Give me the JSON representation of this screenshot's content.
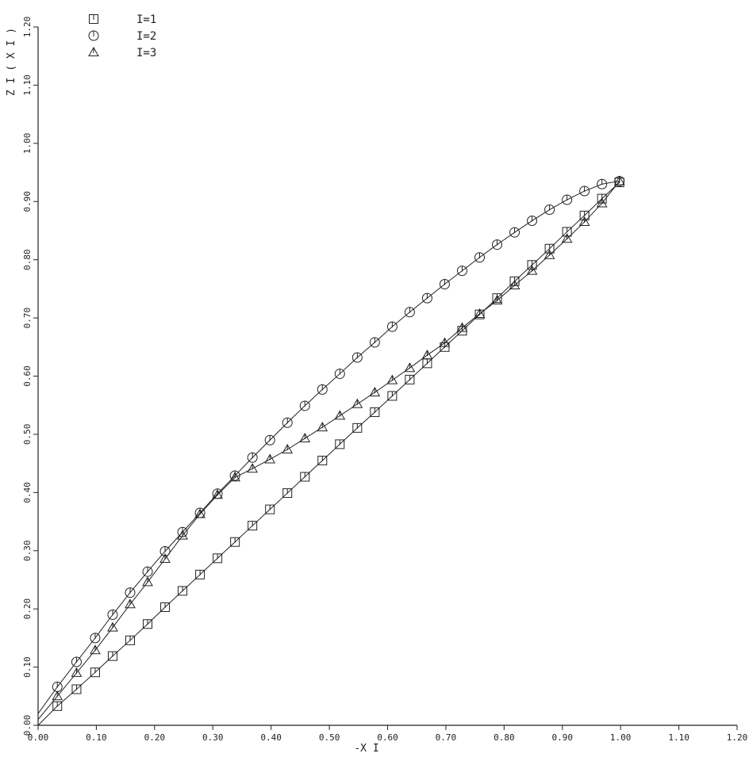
{
  "chart_data": {
    "type": "line",
    "xlabel": "-X I",
    "ylabel": "Z I ( X I )",
    "xlim": [
      0.0,
      1.2
    ],
    "ylim": [
      0.0,
      1.2
    ],
    "xticks": [
      "0.00",
      "0.10",
      "0.20",
      "0.30",
      "0.40",
      "0.50",
      "0.60",
      "0.70",
      "0.80",
      "0.90",
      "1.00",
      "1.10",
      "1.20"
    ],
    "yticks": [
      "0.00",
      "0.10",
      "0.20",
      "0.30",
      "0.40",
      "0.50",
      "0.60",
      "0.70",
      "0.80",
      "0.90",
      "1.00",
      "1.10",
      "1.20"
    ],
    "grid": false,
    "legend_position": "top-left",
    "series": [
      {
        "name": "I=1",
        "marker": "square",
        "x": [
          0.033,
          0.066,
          0.098,
          0.128,
          0.158,
          0.188,
          0.218,
          0.248,
          0.278,
          0.308,
          0.338,
          0.368,
          0.398,
          0.428,
          0.458,
          0.488,
          0.518,
          0.548,
          0.578,
          0.608,
          0.638,
          0.668,
          0.698,
          0.728,
          0.758,
          0.788,
          0.818,
          0.848,
          0.878,
          0.908,
          0.938,
          0.968,
          0.998
        ],
        "y": [
          0.033,
          0.062,
          0.091,
          0.119,
          0.146,
          0.174,
          0.203,
          0.231,
          0.259,
          0.287,
          0.315,
          0.343,
          0.371,
          0.399,
          0.427,
          0.455,
          0.483,
          0.511,
          0.538,
          0.566,
          0.594,
          0.622,
          0.65,
          0.678,
          0.706,
          0.734,
          0.763,
          0.791,
          0.819,
          0.848,
          0.876,
          0.905,
          0.933
        ]
      },
      {
        "name": "I=2",
        "marker": "circle",
        "x": [
          0.033,
          0.066,
          0.098,
          0.128,
          0.158,
          0.188,
          0.218,
          0.248,
          0.278,
          0.308,
          0.338,
          0.368,
          0.398,
          0.428,
          0.458,
          0.488,
          0.518,
          0.548,
          0.578,
          0.608,
          0.638,
          0.668,
          0.698,
          0.728,
          0.758,
          0.788,
          0.818,
          0.848,
          0.878,
          0.908,
          0.938,
          0.968,
          0.998
        ],
        "y": [
          0.066,
          0.109,
          0.15,
          0.19,
          0.228,
          0.264,
          0.299,
          0.332,
          0.365,
          0.398,
          0.429,
          0.46,
          0.49,
          0.52,
          0.549,
          0.577,
          0.604,
          0.632,
          0.658,
          0.685,
          0.71,
          0.734,
          0.758,
          0.781,
          0.804,
          0.826,
          0.847,
          0.867,
          0.886,
          0.903,
          0.918,
          0.93,
          0.935
        ]
      },
      {
        "name": "I=3",
        "marker": "triangle",
        "x": [
          0.033,
          0.066,
          0.098,
          0.128,
          0.158,
          0.188,
          0.218,
          0.248,
          0.278,
          0.308,
          0.338,
          0.368,
          0.398,
          0.428,
          0.458,
          0.488,
          0.518,
          0.548,
          0.578,
          0.608,
          0.638,
          0.668,
          0.698,
          0.728,
          0.758,
          0.788,
          0.818,
          0.848,
          0.878,
          0.908,
          0.938,
          0.968,
          0.998
        ],
        "y": [
          0.05,
          0.09,
          0.129,
          0.168,
          0.208,
          0.246,
          0.286,
          0.326,
          0.363,
          0.396,
          0.426,
          0.441,
          0.457,
          0.474,
          0.493,
          0.512,
          0.532,
          0.552,
          0.572,
          0.593,
          0.614,
          0.636,
          0.657,
          0.683,
          0.707,
          0.73,
          0.756,
          0.781,
          0.808,
          0.836,
          0.865,
          0.897,
          0.935
        ]
      }
    ]
  }
}
